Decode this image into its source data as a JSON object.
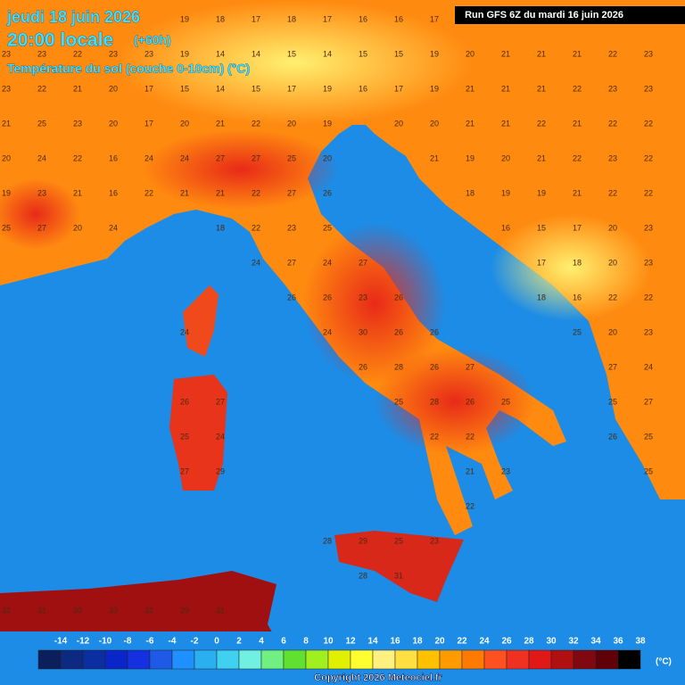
{
  "header": {
    "date": "jeudi 18 juin 2026",
    "time": "20:00 locale",
    "lead": "(+60h)",
    "variable": "Température du sol (couche 0-10cm) (°C)",
    "run": "Run GFS 6Z du mardi 16 juin 2026"
  },
  "map_values": [
    [
      null,
      null,
      null,
      null,
      null,
      19,
      18,
      17,
      18,
      17,
      16,
      16,
      17,
      null,
      null,
      null,
      null,
      null,
      null
    ],
    [
      23,
      23,
      22,
      23,
      23,
      19,
      14,
      14,
      15,
      14,
      15,
      15,
      19,
      20,
      21,
      21,
      21,
      22,
      23
    ],
    [
      23,
      22,
      21,
      20,
      17,
      15,
      14,
      15,
      17,
      19,
      16,
      17,
      19,
      21,
      21,
      21,
      22,
      23,
      23
    ],
    [
      21,
      25,
      23,
      20,
      17,
      20,
      21,
      22,
      20,
      19,
      null,
      20,
      20,
      21,
      21,
      22,
      21,
      22,
      22
    ],
    [
      20,
      24,
      22,
      16,
      24,
      24,
      27,
      27,
      25,
      20,
      null,
      null,
      21,
      19,
      20,
      21,
      22,
      23,
      22
    ],
    [
      19,
      23,
      21,
      16,
      22,
      21,
      21,
      22,
      27,
      26,
      null,
      null,
      null,
      18,
      19,
      19,
      21,
      22,
      22
    ],
    [
      25,
      27,
      20,
      24,
      null,
      null,
      18,
      22,
      23,
      25,
      null,
      null,
      null,
      null,
      16,
      15,
      17,
      20,
      23
    ],
    [
      null,
      null,
      null,
      null,
      null,
      null,
      null,
      24,
      27,
      24,
      27,
      null,
      null,
      null,
      null,
      17,
      18,
      20,
      23
    ],
    [
      null,
      null,
      null,
      null,
      null,
      null,
      null,
      null,
      26,
      26,
      23,
      26,
      null,
      null,
      null,
      18,
      16,
      22,
      22
    ],
    [
      null,
      null,
      null,
      null,
      null,
      24,
      null,
      null,
      null,
      24,
      30,
      26,
      26,
      null,
      null,
      null,
      25,
      20,
      23
    ],
    [
      null,
      null,
      null,
      null,
      null,
      null,
      null,
      null,
      null,
      null,
      26,
      28,
      26,
      27,
      null,
      null,
      null,
      27,
      24
    ],
    [
      null,
      null,
      null,
      null,
      null,
      26,
      27,
      null,
      null,
      null,
      null,
      25,
      28,
      26,
      25,
      null,
      null,
      25,
      27
    ],
    [
      null,
      null,
      null,
      null,
      null,
      25,
      24,
      null,
      null,
      null,
      null,
      null,
      22,
      22,
      null,
      null,
      null,
      26,
      25
    ],
    [
      null,
      null,
      null,
      null,
      null,
      27,
      29,
      null,
      null,
      null,
      null,
      null,
      null,
      21,
      23,
      null,
      null,
      null,
      25
    ],
    [
      null,
      null,
      null,
      null,
      null,
      null,
      null,
      null,
      null,
      null,
      null,
      null,
      null,
      22,
      null,
      null,
      null,
      null,
      null
    ],
    [
      null,
      null,
      null,
      null,
      null,
      null,
      null,
      null,
      null,
      28,
      29,
      25,
      23,
      null,
      null,
      null,
      null,
      null,
      null
    ],
    [
      null,
      null,
      null,
      null,
      null,
      null,
      null,
      null,
      null,
      null,
      28,
      31,
      null,
      null,
      null,
      null,
      null,
      null,
      null
    ],
    [
      32,
      31,
      30,
      33,
      32,
      29,
      31,
      null,
      null,
      null,
      null,
      null,
      null,
      null,
      null,
      null,
      null,
      null,
      null
    ]
  ],
  "legend": {
    "unit": "(°C)",
    "scale": [
      -14,
      -12,
      -10,
      -8,
      -6,
      -4,
      -2,
      0,
      2,
      4,
      6,
      8,
      10,
      12,
      14,
      16,
      18,
      20,
      22,
      24,
      26,
      28,
      30,
      32,
      34,
      36,
      38
    ],
    "colors": [
      "#0a1f5c",
      "#0d2a80",
      "#0b2fa0",
      "#0a26c8",
      "#1530e0",
      "#1f5ae6",
      "#1e90ff",
      "#2ab0f0",
      "#40d0f0",
      "#70f0e0",
      "#70f080",
      "#60e030",
      "#a0f020",
      "#e0f000",
      "#ffff30",
      "#fff080",
      "#ffe040",
      "#ffc000",
      "#ff9a00",
      "#ff7a00",
      "#ff5020",
      "#f03020",
      "#e01818",
      "#b01010",
      "#800810",
      "#600008",
      "#000000"
    ]
  },
  "footer": {
    "copyright": "Copyright 2026 Meteociel.fr"
  }
}
